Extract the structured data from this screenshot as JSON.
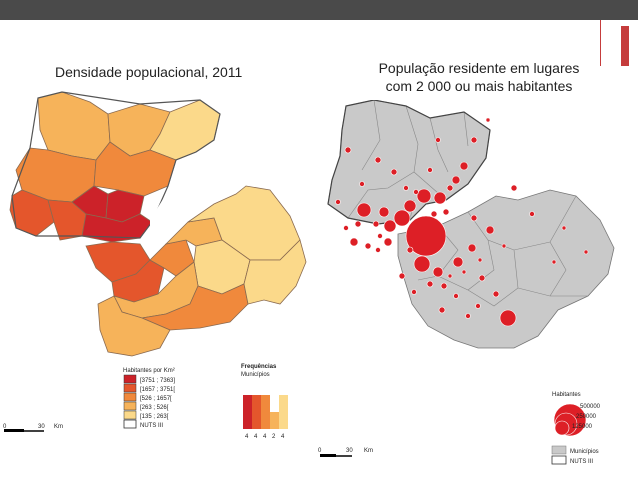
{
  "slide": {
    "left_title": "Densidade populacional, 2011",
    "right_title_line1": "População residente em lugares",
    "right_title_line2": "com 2 000 ou mais habitantes"
  },
  "left_legend": {
    "heading": "Habitantes por Km²",
    "classes": [
      {
        "label": "[3751 ; 7363]",
        "color": "#cc2229"
      },
      {
        "label": "[1657 ; 3751[",
        "color": "#e4562c"
      },
      {
        "label": "[526 ; 1657[",
        "color": "#f0893c"
      },
      {
        "label": "[263 ; 526[",
        "color": "#f6b35a"
      },
      {
        "label": "[135 ; 263[",
        "color": "#fbd98a"
      },
      {
        "label": "NUTS III",
        "color": "#ffffff"
      }
    ]
  },
  "freq_legend": {
    "title": "Frequências",
    "subtitle": "Municípios",
    "counts": [
      "4",
      "4",
      "4",
      "2",
      "4"
    ]
  },
  "left_scale": {
    "zero": "0",
    "dist": "30",
    "unit": "Km"
  },
  "right_scale": {
    "zero": "0",
    "dist": "30",
    "unit": "Km"
  },
  "right_legend": {
    "heading": "Habitantes",
    "sizes": [
      "500000",
      "250000",
      "125000"
    ],
    "municipios": "Municípios",
    "nuts": "NUTS III",
    "circle_color": "#dd1f26",
    "region_color": "#c9c9c9"
  }
}
